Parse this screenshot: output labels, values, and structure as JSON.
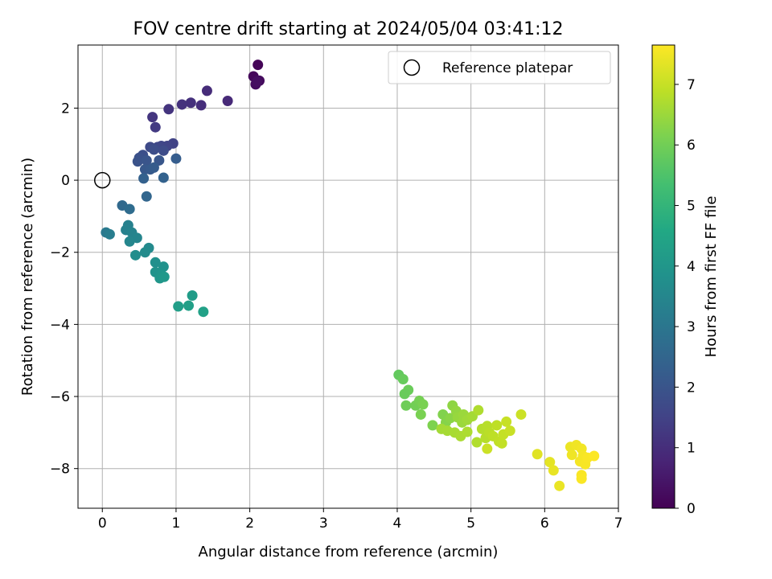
{
  "chart_data": {
    "type": "scatter",
    "title": "FOV centre drift starting at 2024/05/04 03:41:12",
    "xlabel": "Angular distance from reference (arcmin)",
    "ylabel": "Rotation from reference (arcmin)",
    "xlim": [
      -0.33,
      7.0
    ],
    "ylim": [
      -9.1,
      3.75
    ],
    "x_ticks": [
      "0",
      "1",
      "2",
      "3",
      "4",
      "5",
      "6",
      "7"
    ],
    "y_ticks": [
      "2",
      "0",
      "−2",
      "−4",
      "−6",
      "−8"
    ],
    "grid": true,
    "legend": {
      "position": "upper-right",
      "entry": "Reference platepar"
    },
    "reference_point": {
      "x": 0,
      "y": 0
    },
    "colorbar": {
      "label": "Hours from first FF file",
      "range": [
        0,
        7.65
      ],
      "ticks": [
        "0",
        "1",
        "2",
        "3",
        "4",
        "5",
        "6",
        "7"
      ],
      "colormap": "viridis"
    },
    "points": [
      {
        "x": 2.11,
        "y": 3.2,
        "h": 0.08
      },
      {
        "x": 2.05,
        "y": 2.88,
        "h": 0.15
      },
      {
        "x": 2.13,
        "y": 2.76,
        "h": 0.2
      },
      {
        "x": 2.08,
        "y": 2.66,
        "h": 0.25
      },
      {
        "x": 2.1,
        "y": 2.74,
        "h": 0.3
      },
      {
        "x": 1.7,
        "y": 2.2,
        "h": 0.9
      },
      {
        "x": 1.42,
        "y": 2.48,
        "h": 0.95
      },
      {
        "x": 1.34,
        "y": 2.08,
        "h": 1.0
      },
      {
        "x": 1.2,
        "y": 2.15,
        "h": 1.05
      },
      {
        "x": 1.08,
        "y": 2.1,
        "h": 1.1
      },
      {
        "x": 0.9,
        "y": 1.97,
        "h": 1.15
      },
      {
        "x": 0.68,
        "y": 1.75,
        "h": 1.2
      },
      {
        "x": 0.72,
        "y": 1.47,
        "h": 1.3
      },
      {
        "x": 0.96,
        "y": 1.02,
        "h": 1.5
      },
      {
        "x": 0.88,
        "y": 0.95,
        "h": 1.55
      },
      {
        "x": 0.8,
        "y": 0.95,
        "h": 1.6
      },
      {
        "x": 0.75,
        "y": 0.92,
        "h": 1.65
      },
      {
        "x": 0.65,
        "y": 0.92,
        "h": 1.7
      },
      {
        "x": 0.83,
        "y": 0.82,
        "h": 1.75
      },
      {
        "x": 0.7,
        "y": 0.85,
        "h": 1.8
      },
      {
        "x": 0.55,
        "y": 0.7,
        "h": 1.85
      },
      {
        "x": 0.5,
        "y": 0.62,
        "h": 1.9
      },
      {
        "x": 0.48,
        "y": 0.52,
        "h": 1.95
      },
      {
        "x": 0.6,
        "y": 0.55,
        "h": 2.0
      },
      {
        "x": 0.77,
        "y": 0.55,
        "h": 2.05
      },
      {
        "x": 0.58,
        "y": 0.3,
        "h": 2.1
      },
      {
        "x": 0.65,
        "y": 0.3,
        "h": 2.15
      },
      {
        "x": 0.7,
        "y": 0.35,
        "h": 2.2
      },
      {
        "x": 1.0,
        "y": 0.6,
        "h": 2.25
      },
      {
        "x": 0.56,
        "y": 0.05,
        "h": 2.35
      },
      {
        "x": 0.83,
        "y": 0.07,
        "h": 2.4
      },
      {
        "x": 0.6,
        "y": -0.45,
        "h": 2.5
      },
      {
        "x": 0.27,
        "y": -0.7,
        "h": 2.6
      },
      {
        "x": 0.37,
        "y": -0.8,
        "h": 2.7
      },
      {
        "x": 0.05,
        "y": -1.45,
        "h": 3.1
      },
      {
        "x": 0.1,
        "y": -1.5,
        "h": 3.2
      },
      {
        "x": 0.35,
        "y": -1.25,
        "h": 3.3
      },
      {
        "x": 0.32,
        "y": -1.38,
        "h": 3.35
      },
      {
        "x": 0.4,
        "y": -1.45,
        "h": 3.4
      },
      {
        "x": 0.47,
        "y": -1.6,
        "h": 3.45
      },
      {
        "x": 0.37,
        "y": -1.7,
        "h": 3.5
      },
      {
        "x": 0.63,
        "y": -1.88,
        "h": 3.6
      },
      {
        "x": 0.58,
        "y": -2.0,
        "h": 3.65
      },
      {
        "x": 0.45,
        "y": -2.08,
        "h": 3.7
      },
      {
        "x": 0.72,
        "y": -2.28,
        "h": 3.8
      },
      {
        "x": 0.83,
        "y": -2.4,
        "h": 3.85
      },
      {
        "x": 0.72,
        "y": -2.55,
        "h": 3.9
      },
      {
        "x": 0.8,
        "y": -2.62,
        "h": 3.95
      },
      {
        "x": 0.78,
        "y": -2.72,
        "h": 4.0
      },
      {
        "x": 0.84,
        "y": -2.68,
        "h": 4.05
      },
      {
        "x": 1.22,
        "y": -3.2,
        "h": 4.2
      },
      {
        "x": 1.03,
        "y": -3.5,
        "h": 4.25
      },
      {
        "x": 1.17,
        "y": -3.48,
        "h": 4.3
      },
      {
        "x": 1.37,
        "y": -3.65,
        "h": 4.35
      },
      {
        "x": 4.02,
        "y": -5.4,
        "h": 5.8
      },
      {
        "x": 4.08,
        "y": -5.52,
        "h": 5.85
      },
      {
        "x": 4.15,
        "y": -5.82,
        "h": 5.9
      },
      {
        "x": 4.1,
        "y": -5.93,
        "h": 5.88
      },
      {
        "x": 4.12,
        "y": -6.25,
        "h": 5.95
      },
      {
        "x": 4.25,
        "y": -6.25,
        "h": 6.0
      },
      {
        "x": 4.3,
        "y": -6.12,
        "h": 6.05
      },
      {
        "x": 4.35,
        "y": -6.22,
        "h": 6.1
      },
      {
        "x": 4.32,
        "y": -6.5,
        "h": 6.1
      },
      {
        "x": 4.48,
        "y": -6.8,
        "h": 6.15
      },
      {
        "x": 4.62,
        "y": -6.5,
        "h": 6.2
      },
      {
        "x": 4.66,
        "y": -6.72,
        "h": 6.25
      },
      {
        "x": 4.72,
        "y": -6.6,
        "h": 6.3
      },
      {
        "x": 4.75,
        "y": -6.25,
        "h": 6.35
      },
      {
        "x": 4.8,
        "y": -6.4,
        "h": 6.4
      },
      {
        "x": 4.82,
        "y": -6.58,
        "h": 6.45
      },
      {
        "x": 4.88,
        "y": -6.72,
        "h": 6.5
      },
      {
        "x": 4.9,
        "y": -6.5,
        "h": 6.5
      },
      {
        "x": 4.95,
        "y": -6.65,
        "h": 6.55
      },
      {
        "x": 5.02,
        "y": -6.55,
        "h": 6.6
      },
      {
        "x": 4.6,
        "y": -6.9,
        "h": 6.6
      },
      {
        "x": 4.68,
        "y": -6.95,
        "h": 6.62
      },
      {
        "x": 4.78,
        "y": -7.0,
        "h": 6.65
      },
      {
        "x": 4.86,
        "y": -7.1,
        "h": 6.68
      },
      {
        "x": 4.95,
        "y": -6.98,
        "h": 6.7
      },
      {
        "x": 5.1,
        "y": -6.38,
        "h": 6.72
      },
      {
        "x": 5.08,
        "y": -7.27,
        "h": 6.75
      },
      {
        "x": 5.15,
        "y": -6.9,
        "h": 6.78
      },
      {
        "x": 5.2,
        "y": -7.15,
        "h": 6.8
      },
      {
        "x": 5.22,
        "y": -6.82,
        "h": 6.82
      },
      {
        "x": 5.25,
        "y": -7.0,
        "h": 6.85
      },
      {
        "x": 5.3,
        "y": -7.1,
        "h": 6.88
      },
      {
        "x": 5.35,
        "y": -6.8,
        "h": 6.9
      },
      {
        "x": 5.38,
        "y": -7.25,
        "h": 6.92
      },
      {
        "x": 5.42,
        "y": -7.3,
        "h": 6.95
      },
      {
        "x": 5.44,
        "y": -7.05,
        "h": 6.97
      },
      {
        "x": 5.48,
        "y": -6.7,
        "h": 7.0
      },
      {
        "x": 5.53,
        "y": -6.95,
        "h": 7.02
      },
      {
        "x": 5.22,
        "y": -7.45,
        "h": 7.05
      },
      {
        "x": 5.68,
        "y": -6.5,
        "h": 7.05
      },
      {
        "x": 5.9,
        "y": -7.6,
        "h": 7.3
      },
      {
        "x": 6.07,
        "y": -7.82,
        "h": 7.35
      },
      {
        "x": 6.12,
        "y": -8.05,
        "h": 7.4
      },
      {
        "x": 6.2,
        "y": -8.48,
        "h": 7.42
      },
      {
        "x": 6.35,
        "y": -7.4,
        "h": 7.45
      },
      {
        "x": 6.37,
        "y": -7.62,
        "h": 7.48
      },
      {
        "x": 6.43,
        "y": -7.35,
        "h": 7.5
      },
      {
        "x": 6.5,
        "y": -7.45,
        "h": 7.52
      },
      {
        "x": 6.48,
        "y": -7.8,
        "h": 7.55
      },
      {
        "x": 6.52,
        "y": -7.65,
        "h": 7.56
      },
      {
        "x": 6.55,
        "y": -7.88,
        "h": 7.58
      },
      {
        "x": 6.58,
        "y": -7.7,
        "h": 7.6
      },
      {
        "x": 6.5,
        "y": -8.18,
        "h": 7.6
      },
      {
        "x": 6.5,
        "y": -8.28,
        "h": 7.62
      },
      {
        "x": 6.67,
        "y": -7.65,
        "h": 7.64
      }
    ]
  }
}
